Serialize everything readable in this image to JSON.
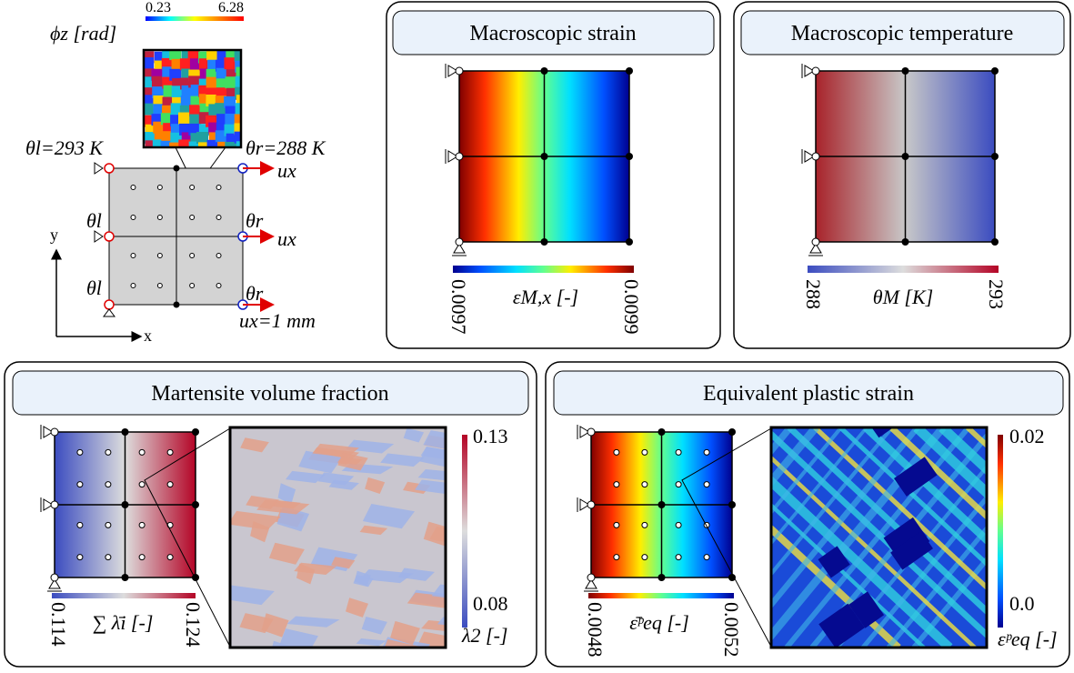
{
  "setup": {
    "phi_label": "ϕz [rad]",
    "phi_min": "0.23",
    "phi_max": "6.28",
    "theta_left_top": "θl=293 K",
    "theta_right_top": "θr=288 K",
    "ux_top": "ux",
    "theta_left_mid": "θl",
    "theta_right_mid": "θr",
    "ux_mid": "ux",
    "theta_left_bottom": "θl",
    "theta_right_bottom": "θr",
    "ux_bottom": "ux=1 mm",
    "axis_y": "y",
    "axis_x": "x"
  },
  "panels": [
    {
      "title": "Macroscopic strain",
      "bar_min": "0.0097",
      "bar_max": "0.0099",
      "bar_label": "εM,x [-]"
    },
    {
      "title": "Macroscopic temperature",
      "bar_min": "288",
      "bar_max": "293",
      "bar_label": "θM [K]"
    },
    {
      "title": "Martensite volume fraction",
      "bar_min": "0.114",
      "bar_max": "0.124",
      "bar_label": "∑ λ̄i [-]",
      "zoom_max": "0.13",
      "zoom_min": "0.08",
      "zoom_label": "λ2 [-]"
    },
    {
      "title": "Equivalent plastic strain",
      "bar_min": "0.0048",
      "bar_max": "0.0052",
      "bar_label": "ε̄ᵖeq [-]",
      "zoom_max": "0.02",
      "zoom_min": "0.0",
      "zoom_label": "εᵖeq [-]"
    }
  ]
}
